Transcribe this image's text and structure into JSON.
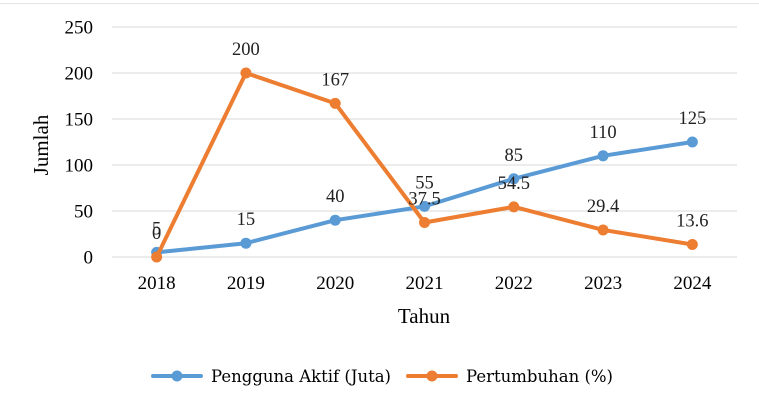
{
  "chart_data": {
    "type": "line",
    "categories": [
      "2018",
      "2019",
      "2020",
      "2021",
      "2022",
      "2023",
      "2024"
    ],
    "series": [
      {
        "name": "Pengguna Aktif (Juta)",
        "values": [
          5,
          15,
          40,
          55,
          85,
          110,
          125
        ],
        "labels": [
          "5",
          "15",
          "40",
          "55",
          "85",
          "110",
          "125"
        ],
        "color": "#5b9bd5"
      },
      {
        "name": "Pertumbuhan (%)",
        "values": [
          0,
          200,
          167,
          37.5,
          54.5,
          29.4,
          13.6
        ],
        "labels": [
          "0",
          "200",
          "167",
          "37.5",
          "54.5",
          "29.4",
          "13.6"
        ],
        "color": "#ed7d31"
      }
    ],
    "xlabel": "Tahun",
    "ylabel": "Jumlah",
    "ylim": [
      0,
      250
    ],
    "yticks": [
      "0",
      "50",
      "100",
      "150",
      "200",
      "250"
    ],
    "grid": true,
    "legend": "bottom"
  }
}
